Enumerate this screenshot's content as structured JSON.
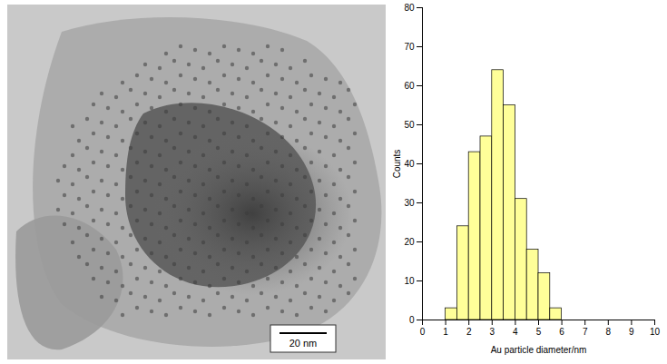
{
  "chart_data": {
    "type": "histogram",
    "xlabel": "Au particle diameter/nm",
    "ylabel": "Counts",
    "bins": [
      1,
      1.5,
      2,
      2.5,
      3,
      3.5,
      4,
      4.5,
      5,
      5.5,
      6
    ],
    "values": [
      3,
      24,
      43,
      47,
      64,
      55,
      31,
      18,
      12,
      3
    ],
    "color": "#ffff99",
    "xlim": [
      0,
      10
    ],
    "xticks": [
      0,
      1,
      2,
      3,
      4,
      5,
      6,
      7,
      8,
      9,
      10
    ],
    "ylim": [
      0,
      80
    ],
    "yticks": [
      0,
      10,
      20,
      30,
      40,
      50,
      60,
      70,
      80
    ],
    "grid": false
  },
  "micrograph": {
    "scale_bar_label": "20 nm"
  }
}
